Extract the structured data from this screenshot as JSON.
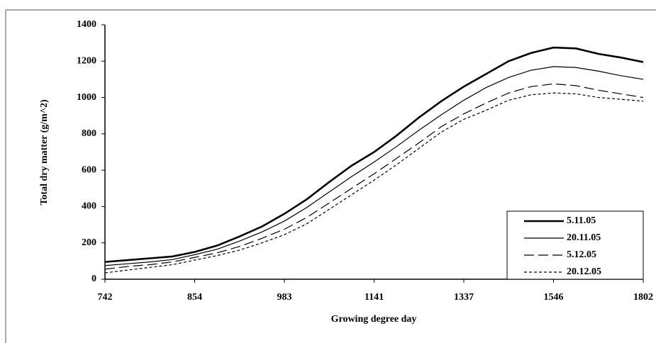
{
  "chart_data": {
    "type": "line",
    "x_label": "Growing degree day",
    "y_label": "Total dry matter (g/m^2)",
    "categories": [
      "742",
      null,
      null,
      null,
      "854",
      null,
      null,
      null,
      "983",
      null,
      null,
      null,
      "1141",
      null,
      null,
      null,
      "1337",
      null,
      null,
      null,
      "1546",
      null,
      null,
      null,
      "1802"
    ],
    "ylim": [
      0,
      1400
    ],
    "yticks": [
      0,
      200,
      400,
      600,
      800,
      1000,
      1200,
      1400
    ],
    "legend": "bottom-right",
    "series": [
      {
        "name": "5.11.05",
        "color": "#000000",
        "line_style": "solid",
        "line_width": 2.6,
        "values": [
          95,
          105,
          115,
          125,
          150,
          185,
          235,
          290,
          360,
          440,
          535,
          625,
          700,
          790,
          890,
          980,
          1060,
          1130,
          1200,
          1245,
          1275,
          1270,
          1240,
          1220,
          1195
        ]
      },
      {
        "name": "20.11.05",
        "color": "#000000",
        "line_style": "solid",
        "line_width": 1.2,
        "values": [
          75,
          85,
          95,
          108,
          135,
          165,
          210,
          260,
          320,
          395,
          480,
          565,
          645,
          730,
          820,
          905,
          985,
          1055,
          1110,
          1150,
          1170,
          1165,
          1145,
          1120,
          1100
        ]
      },
      {
        "name": "5.12.05",
        "color": "#000000",
        "line_style": "dashed",
        "line_width": 1.2,
        "values": [
          55,
          70,
          80,
          95,
          120,
          145,
          180,
          225,
          275,
          340,
          420,
          500,
          580,
          665,
          750,
          840,
          910,
          970,
          1025,
          1060,
          1075,
          1065,
          1040,
          1020,
          1000
        ]
      },
      {
        "name": "20.12.05",
        "color": "#000000",
        "line_style": "dotted",
        "line_width": 1.2,
        "values": [
          35,
          50,
          65,
          80,
          105,
          130,
          160,
          200,
          245,
          305,
          385,
          465,
          545,
          630,
          720,
          810,
          880,
          930,
          985,
          1015,
          1025,
          1020,
          1000,
          990,
          980
        ]
      }
    ]
  }
}
